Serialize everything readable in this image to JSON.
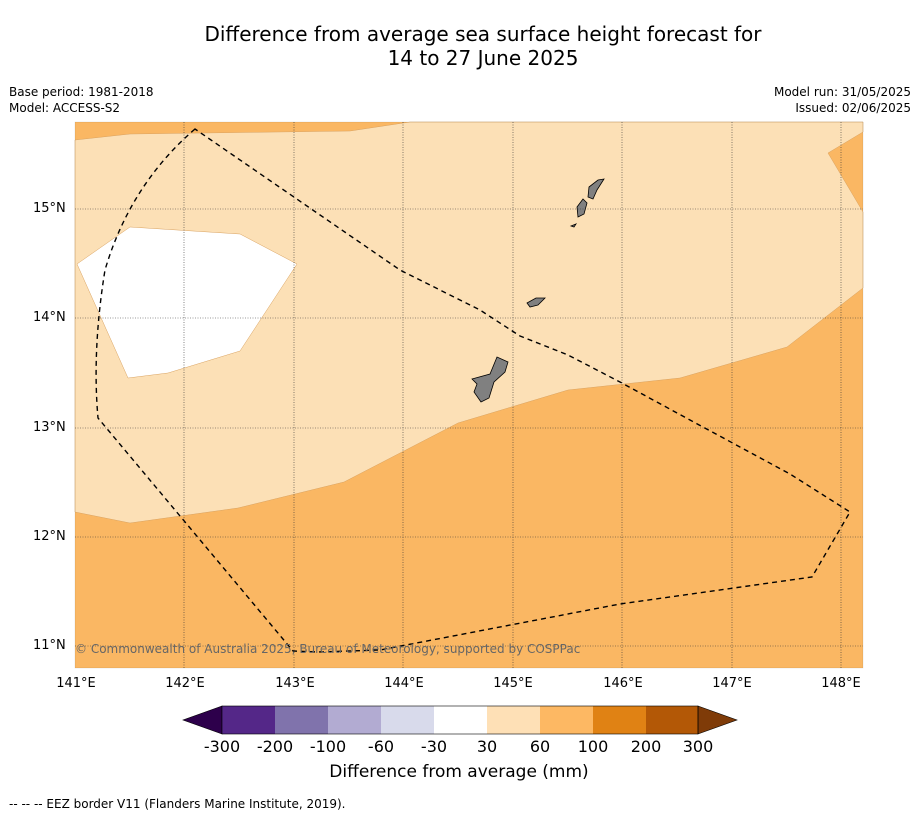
{
  "title": {
    "line1": "Difference from average sea surface height forecast for",
    "line2": "14 to 27 June 2025"
  },
  "meta": {
    "base_period": "Base period: 1981-2018",
    "model": "Model: ACCESS-S2",
    "model_run": "Model run: 31/05/2025",
    "issued": "Issued: 02/06/2025"
  },
  "map": {
    "lat_labels": [
      "15°N",
      "14°N",
      "13°N",
      "12°N",
      "11°N"
    ],
    "lon_labels": [
      "141°E",
      "142°E",
      "143°E",
      "144°E",
      "145°E",
      "146°E",
      "147°E",
      "148°E"
    ],
    "copyright": "© Commonwealth of Australia 2025, Bureau of Meteorology, supported by COSPPac",
    "fill_colors": {
      "30_60": "#fce0b6",
      "60_100": "#fab763",
      "-30_30": "#ffffff",
      "land": "#808080"
    }
  },
  "colorbar": {
    "labels": [
      "-300",
      "-200",
      "-100",
      "-60",
      "-30",
      "30",
      "60",
      "100",
      "200",
      "300"
    ],
    "colors": [
      "#2d004b",
      "#542788",
      "#8073ac",
      "#b2abd2",
      "#d8daeb",
      "#ffffff",
      "#fee0b6",
      "#fdb863",
      "#e08214",
      "#b35806",
      "#7f3b08"
    ],
    "title": "Difference from average (mm)"
  },
  "footnote": "--  --  -- EEZ border V11 (Flanders Marine Institute, 2019)."
}
